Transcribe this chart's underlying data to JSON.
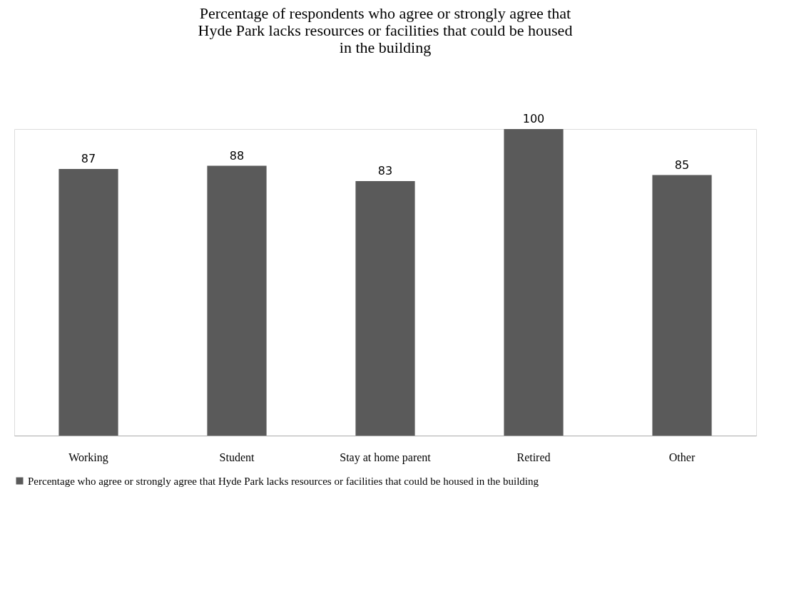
{
  "chart_data": {
    "type": "bar",
    "title": "Percentage of respondents who agree or strongly agree that Hyde Park lacks resources or facilities that could be housed in the building",
    "categories": [
      "Working",
      "Student",
      "Stay at home parent",
      "Retired",
      "Other"
    ],
    "series": [
      {
        "name": "Percentage who agree or strongly agree that Hyde Park lacks resources or facilities that could be housed in the building",
        "color": "#5a5a5a",
        "values": [
          87,
          88,
          83,
          100,
          85
        ]
      }
    ],
    "data_labels": true,
    "legend": "bottom",
    "grid": false
  }
}
